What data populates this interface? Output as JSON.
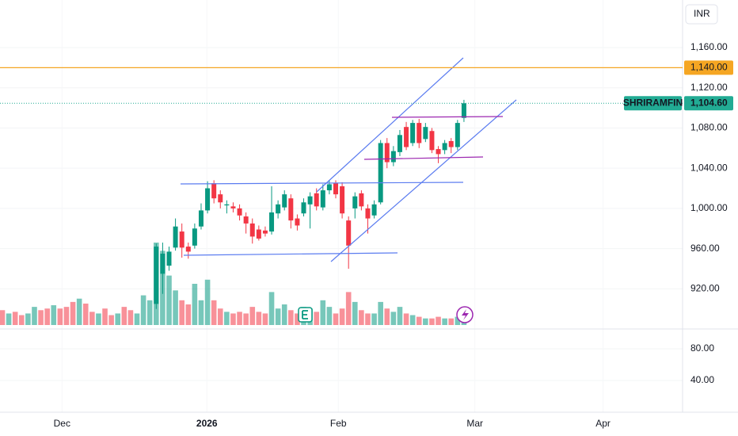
{
  "chart_data": {
    "type": "candlestick",
    "currency": "INR",
    "open": [
      null,
      null,
      null,
      null,
      null,
      null,
      null,
      null,
      null,
      null,
      null,
      null,
      null,
      null,
      null,
      null,
      null,
      null,
      null,
      null,
      null,
      null,
      null,
      null,
      905,
      935,
      943,
      961,
      977,
      962,
      963,
      982,
      998,
      1025,
      1014,
      1003,
      1002,
      1000,
      992,
      985,
      979,
      978,
      977,
      995,
      1001,
      1010,
      990,
      995,
      1004,
      1015,
      1001,
      1018,
      1025,
      1022,
      988,
      1000,
      1015,
      1000,
      993,
      1006,
      1065,
      1046,
      1056,
      1081,
      1065,
      1085,
      1069,
      1077,
      1059,
      1058,
      1067,
      1061,
      1090
    ],
    "high": [
      null,
      null,
      null,
      null,
      null,
      null,
      null,
      null,
      null,
      null,
      null,
      null,
      null,
      null,
      null,
      null,
      null,
      null,
      null,
      null,
      null,
      null,
      null,
      null,
      965,
      966,
      962,
      990,
      985,
      966,
      985,
      1005,
      1027,
      1028,
      1018,
      1008,
      1006,
      1004,
      996,
      990,
      983,
      982,
      1022,
      1008,
      1018,
      1014,
      994,
      1010,
      1016,
      1020,
      1024,
      1028,
      1028,
      1026,
      992,
      1016,
      1018,
      1004,
      1008,
      1068,
      1070,
      1062,
      1078,
      1086,
      1088,
      1089,
      1085,
      1080,
      1062,
      1068,
      1070,
      1088,
      1108
    ],
    "low": [
      null,
      null,
      null,
      null,
      null,
      null,
      null,
      null,
      null,
      null,
      null,
      null,
      null,
      null,
      null,
      null,
      null,
      null,
      null,
      null,
      null,
      null,
      null,
      null,
      900,
      915,
      938,
      958,
      951,
      950,
      960,
      979,
      995,
      1005,
      1000,
      995,
      996,
      988,
      975,
      965,
      968,
      972,
      974,
      990,
      998,
      980,
      978,
      992,
      980,
      998,
      998,
      1014,
      1010,
      990,
      940,
      990,
      998,
      975,
      990,
      1004,
      1040,
      1042,
      1052,
      1058,
      1062,
      1060,
      1066,
      1055,
      1045,
      1054,
      1055,
      1058,
      1086
    ],
    "close": [
      null,
      null,
      null,
      null,
      null,
      null,
      null,
      null,
      null,
      null,
      null,
      null,
      null,
      null,
      null,
      null,
      null,
      null,
      null,
      null,
      null,
      null,
      null,
      null,
      962,
      955,
      957,
      982,
      961,
      957,
      980,
      998,
      1020,
      1010,
      1006,
      1004,
      1000,
      993,
      985,
      972,
      970,
      975,
      996,
      1004,
      1014,
      988,
      983,
      1006,
      1012,
      1002,
      1018,
      1024,
      1014,
      995,
      963,
      1012,
      1002,
      990,
      1004,
      1065,
      1046,
      1057,
      1073,
      1061,
      1085,
      1065,
      1081,
      1058,
      1054,
      1065,
      1061,
      1085,
      1104.6
    ],
    "volume": [
      18,
      14,
      16,
      12,
      14,
      22,
      18,
      20,
      24,
      20,
      22,
      28,
      32,
      26,
      16,
      14,
      20,
      12,
      14,
      22,
      18,
      14,
      36,
      30,
      100,
      90,
      60,
      42,
      30,
      25,
      50,
      30,
      55,
      30,
      20,
      16,
      14,
      16,
      14,
      22,
      16,
      14,
      40,
      20,
      25,
      18,
      14,
      22,
      20,
      16,
      30,
      22,
      14,
      20,
      40,
      28,
      18,
      14,
      14,
      28,
      20,
      16,
      22,
      14,
      12,
      10,
      8,
      8,
      10,
      8,
      8,
      10,
      12
    ],
    "volume_colors": [
      "#f23645",
      "#089981",
      "#f23645",
      "#f23645",
      "#089981",
      "#089981",
      "#f23645",
      "#f23645",
      "#089981",
      "#f23645",
      "#f23645",
      "#f23645",
      "#089981",
      "#f23645",
      "#f23645",
      "#089981",
      "#f23645",
      "#f23645",
      "#089981",
      "#f23645",
      "#f23645",
      "#089981",
      "#089981",
      "#089981",
      "#089981",
      "#089981",
      "#089981",
      "#089981",
      "#f23645",
      "#f23645",
      "#089981",
      "#089981",
      "#089981",
      "#f23645",
      "#f23645",
      "#089981",
      "#f23645",
      "#f23645",
      "#f23645",
      "#f23645",
      "#f23645",
      "#f23645",
      "#089981",
      "#089981",
      "#089981",
      "#f23645",
      "#f23645",
      "#089981",
      "#089981",
      "#f23645",
      "#089981",
      "#089981",
      "#f23645",
      "#f23645",
      "#f23645",
      "#089981",
      "#f23645",
      "#f23645",
      "#089981",
      "#089981",
      "#f23645",
      "#089981",
      "#089981",
      "#f23645",
      "#089981",
      "#f23645",
      "#089981",
      "#f23645",
      "#f23645",
      "#089981",
      "#f23645",
      "#089981",
      "#089981"
    ],
    "up_color": "#089981",
    "down_color": "#f23645",
    "xlim": [
      -0.37,
      106.1
    ],
    "xticks": [
      {
        "value": 9.3,
        "label": "Dec"
      },
      {
        "value": 31.9,
        "label": "2026"
      },
      {
        "value": 52.4,
        "label": "Feb"
      },
      {
        "value": 73.7,
        "label": "Mar"
      },
      {
        "value": 93.7,
        "label": "Apr"
      }
    ],
    "ylim": [
      884,
      1207.3
    ],
    "yticks": [
      {
        "value": 1160,
        "label": "1,160.00"
      },
      {
        "value": 1120,
        "label": "1,120.00"
      },
      {
        "value": 1080,
        "label": "1,080.00"
      },
      {
        "value": 1040,
        "label": "1,040.00"
      },
      {
        "value": 1000,
        "label": "1,000.00"
      },
      {
        "value": 960,
        "label": "960.00"
      },
      {
        "value": 920,
        "label": "920.00"
      }
    ],
    "hline": {
      "value": 1140,
      "label": "1,140.00",
      "color": "#f5a623"
    },
    "last_price": {
      "symbol": "SHRIRAMFIN",
      "value": 1104.6,
      "label": "1,104.60",
      "color": "#22ab94"
    },
    "lower_pane": {
      "ylim": [
        0,
        100
      ],
      "yticks": [
        {
          "value": 80,
          "label": "80.00"
        },
        {
          "value": 40,
          "label": "40.00"
        }
      ]
    }
  }
}
